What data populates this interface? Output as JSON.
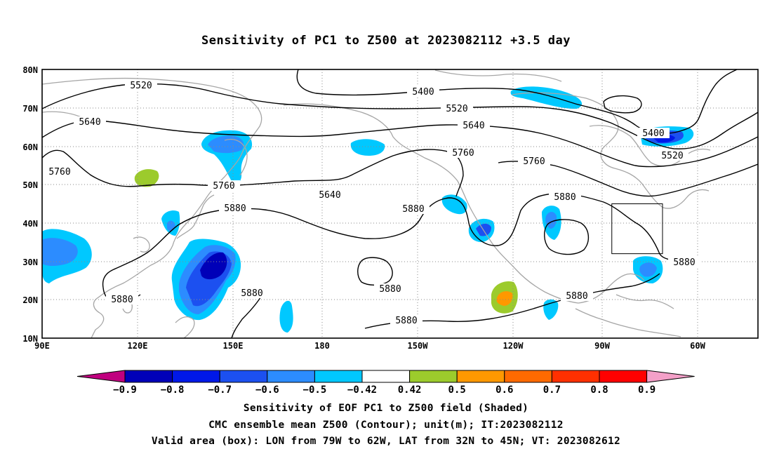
{
  "title": "Sensitivity of PC1 to Z500 at 2023082112 +3.5 day",
  "lat_ticks": [
    "80N",
    "70N",
    "60N",
    "50N",
    "40N",
    "30N",
    "20N",
    "10N"
  ],
  "lon_ticks": [
    "90E",
    "120E",
    "150E",
    "180",
    "150W",
    "120W",
    "90W",
    "60W"
  ],
  "contour_labels": [
    "5400",
    "5520",
    "5640",
    "5760",
    "5880"
  ],
  "colorbar": {
    "labels": [
      "-0.9",
      "-0.8",
      "-0.7",
      "-0.6",
      "-0.5",
      "-0.42",
      "0.42",
      "0.5",
      "0.6",
      "0.7",
      "0.8",
      "0.9"
    ],
    "colors": [
      "#c0007f",
      "#0000b8",
      "#0018e8",
      "#1c50f0",
      "#2c8cff",
      "#00c8ff",
      "#ffffff",
      "#9ccb2c",
      "#ff9800",
      "#ff6a00",
      "#ff3000",
      "#ff0000",
      "#f4a0c8"
    ]
  },
  "footer": {
    "line1": "Sensitivity of EOF PC1 to Z500 field (Shaded)",
    "line2": "CMC ensemble mean Z500 (Contour); unit(m); IT:2023082112",
    "line3": "Valid area (box): LON from 79W to 62W, LAT from 32N to 45N; VT: 2023082612"
  },
  "valid_box": {
    "lon_min": -79,
    "lon_max": -62,
    "lat_min": 32,
    "lat_max": 45
  }
}
